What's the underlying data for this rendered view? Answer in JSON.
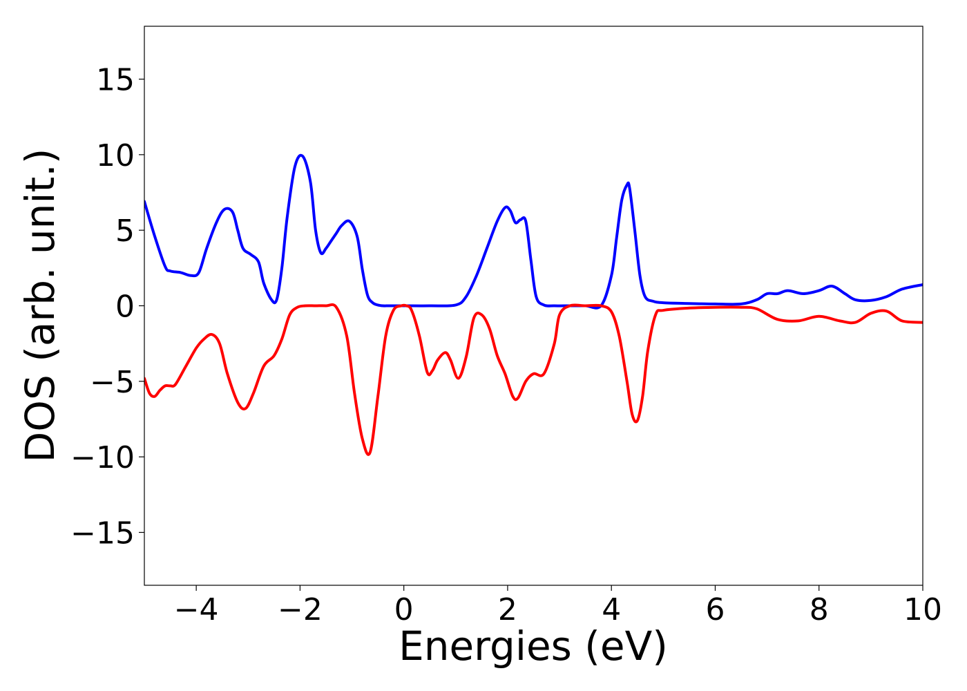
{
  "chart_data": {
    "type": "line",
    "title": "",
    "xlabel": "Energies (eV)",
    "ylabel": "DOS (arb. unit.)",
    "xlim": [
      -5,
      10
    ],
    "ylim": [
      -18.5,
      18.5
    ],
    "grid": false,
    "legend": "none",
    "x_ticks": [
      -4,
      -2,
      0,
      2,
      4,
      6,
      8,
      10
    ],
    "x_tick_labels": [
      "−4",
      "−2",
      "0",
      "2",
      "4",
      "6",
      "8",
      "10"
    ],
    "y_ticks": [
      15,
      10,
      5,
      0,
      -5,
      -10,
      -15
    ],
    "y_tick_labels": [
      "15",
      "10",
      "5",
      "0",
      "−5",
      "−10",
      "−15"
    ],
    "series": [
      {
        "color": "#0000ff",
        "x": [
          -5.0,
          -4.8,
          -4.6,
          -4.5,
          -4.3,
          -4.1,
          -3.95,
          -3.8,
          -3.6,
          -3.45,
          -3.3,
          -3.2,
          -3.1,
          -2.95,
          -2.8,
          -2.7,
          -2.55,
          -2.45,
          -2.35,
          -2.25,
          -2.1,
          -1.95,
          -1.8,
          -1.7,
          -1.6,
          -1.5,
          -1.4,
          -1.3,
          -1.2,
          -1.05,
          -0.9,
          -0.8,
          -0.7,
          -0.6,
          -0.5,
          -0.4,
          -0.3,
          -0.2,
          -0.1,
          0.0,
          0.5,
          1.0,
          1.2,
          1.4,
          1.6,
          1.8,
          1.95,
          2.05,
          2.15,
          2.25,
          2.35,
          2.45,
          2.55,
          2.7,
          2.9,
          3.2,
          3.5,
          3.8,
          4.0,
          4.1,
          4.2,
          4.3,
          4.35,
          4.45,
          4.55,
          4.65,
          4.8,
          5.0,
          5.5,
          6.0,
          6.5,
          6.8,
          7.0,
          7.2,
          7.4,
          7.7,
          8.0,
          8.25,
          8.5,
          8.7,
          9.0,
          9.3,
          9.6,
          10.0
        ],
        "y": [
          6.9,
          4.6,
          2.6,
          2.3,
          2.2,
          2.0,
          2.2,
          3.8,
          5.6,
          6.4,
          6.2,
          5.0,
          3.8,
          3.4,
          2.9,
          1.5,
          0.4,
          0.4,
          2.5,
          5.8,
          9.2,
          9.9,
          8.2,
          5.0,
          3.5,
          3.8,
          4.3,
          4.8,
          5.3,
          5.6,
          4.6,
          2.4,
          0.7,
          0.2,
          0.05,
          0.0,
          0.0,
          0.0,
          0.0,
          0.0,
          0.0,
          0.05,
          0.6,
          2.0,
          3.8,
          5.6,
          6.5,
          6.3,
          5.5,
          5.7,
          5.6,
          3.0,
          0.6,
          0.05,
          0.0,
          0.0,
          0.0,
          0.0,
          2.0,
          4.5,
          7.0,
          8.0,
          7.8,
          5.0,
          2.0,
          0.6,
          0.3,
          0.2,
          0.15,
          0.12,
          0.12,
          0.4,
          0.8,
          0.8,
          1.0,
          0.8,
          1.0,
          1.3,
          0.8,
          0.4,
          0.35,
          0.6,
          1.1,
          1.4
        ]
      },
      {
        "color": "#ff0000",
        "x": [
          -5.0,
          -4.9,
          -4.8,
          -4.7,
          -4.6,
          -4.5,
          -4.4,
          -4.2,
          -4.0,
          -3.85,
          -3.7,
          -3.55,
          -3.4,
          -3.2,
          -3.05,
          -2.9,
          -2.7,
          -2.5,
          -2.35,
          -2.2,
          -2.05,
          -1.9,
          -1.7,
          -1.5,
          -1.3,
          -1.1,
          -0.95,
          -0.8,
          -0.65,
          -0.5,
          -0.35,
          -0.2,
          -0.05,
          0.05,
          0.15,
          0.3,
          0.45,
          0.55,
          0.65,
          0.8,
          0.9,
          1.05,
          1.2,
          1.35,
          1.5,
          1.65,
          1.8,
          1.95,
          2.1,
          2.2,
          2.35,
          2.5,
          2.7,
          2.9,
          3.0,
          3.2,
          3.5,
          3.8,
          4.0,
          4.15,
          4.3,
          4.4,
          4.5,
          4.6,
          4.7,
          4.85,
          5.0,
          5.5,
          6.0,
          6.5,
          6.8,
          7.2,
          7.6,
          8.0,
          8.4,
          8.7,
          9.0,
          9.3,
          9.6,
          10.0
        ],
        "y": [
          -4.8,
          -5.8,
          -6.0,
          -5.6,
          -5.3,
          -5.3,
          -5.2,
          -4.0,
          -2.8,
          -2.2,
          -1.9,
          -2.5,
          -4.5,
          -6.4,
          -6.8,
          -5.8,
          -4.0,
          -3.3,
          -2.2,
          -0.6,
          -0.1,
          0.0,
          0.0,
          0.0,
          -0.1,
          -2.0,
          -5.8,
          -8.8,
          -9.7,
          -6.0,
          -2.0,
          -0.3,
          0.0,
          0.0,
          -0.3,
          -2.0,
          -4.4,
          -4.3,
          -3.6,
          -3.1,
          -3.6,
          -4.8,
          -3.4,
          -0.8,
          -0.6,
          -1.5,
          -3.3,
          -4.5,
          -6.0,
          -6.1,
          -5.0,
          -4.5,
          -4.5,
          -2.5,
          -0.6,
          0.0,
          0.0,
          0.0,
          -0.4,
          -2.0,
          -5.0,
          -7.2,
          -7.6,
          -6.0,
          -3.0,
          -0.6,
          -0.3,
          -0.15,
          -0.1,
          -0.1,
          -0.2,
          -0.9,
          -1.0,
          -0.7,
          -1.0,
          -1.1,
          -0.5,
          -0.35,
          -1.0,
          -1.1
        ]
      }
    ]
  }
}
